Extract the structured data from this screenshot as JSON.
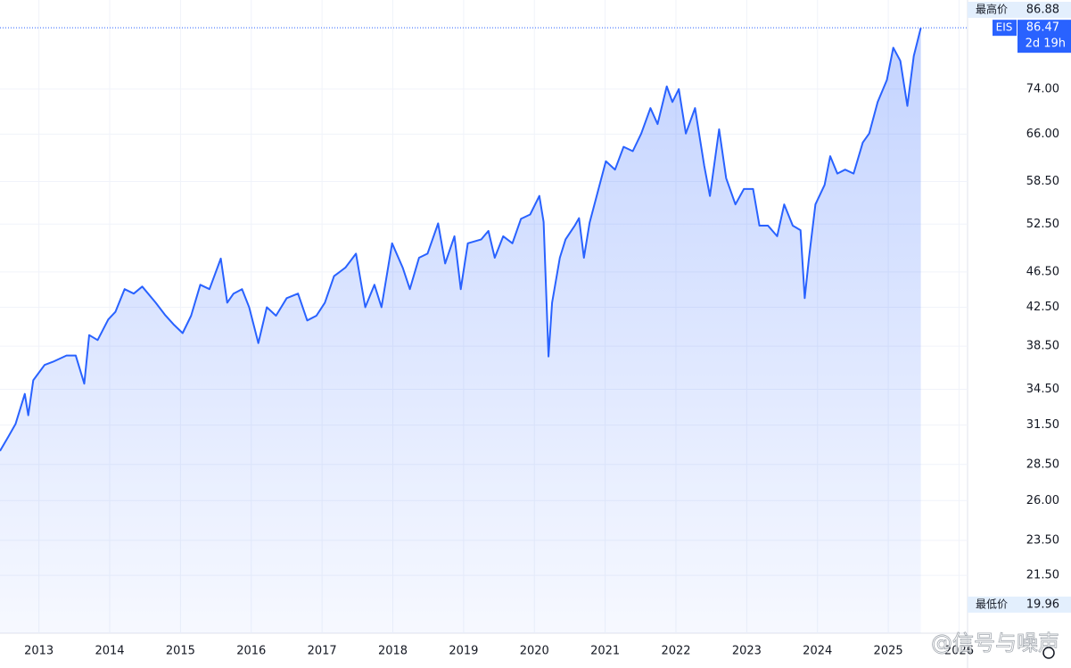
{
  "chart_data": {
    "type": "line",
    "log_scale": true,
    "grid": true,
    "x": [
      2012.45,
      2012.57,
      2012.67,
      2012.8,
      2012.85,
      2012.92,
      2013.08,
      2013.2,
      2013.39,
      2013.52,
      2013.64,
      2013.71,
      2013.83,
      2013.98,
      2014.08,
      2014.21,
      2014.34,
      2014.46,
      2014.65,
      2014.78,
      2014.9,
      2015.03,
      2015.15,
      2015.28,
      2015.41,
      2015.57,
      2015.66,
      2015.75,
      2015.87,
      2015.97,
      2016.1,
      2016.22,
      2016.35,
      2016.5,
      2016.66,
      2016.79,
      2016.92,
      2017.04,
      2017.17,
      2017.33,
      2017.48,
      2017.61,
      2017.74,
      2017.84,
      2017.99,
      2018.14,
      2018.24,
      2018.37,
      2018.49,
      2018.64,
      2018.74,
      2018.87,
      2018.96,
      2019.06,
      2019.25,
      2019.35,
      2019.44,
      2019.56,
      2019.69,
      2019.81,
      2019.94,
      2020.07,
      2020.13,
      2020.2,
      2020.25,
      2020.36,
      2020.44,
      2020.57,
      2020.63,
      2020.7,
      2020.78,
      2020.88,
      2021.01,
      2021.14,
      2021.26,
      2021.39,
      2021.51,
      2021.64,
      2021.74,
      2021.87,
      2021.95,
      2022.04,
      2022.14,
      2022.27,
      2022.4,
      2022.48,
      2022.61,
      2022.71,
      2022.84,
      2022.96,
      2023.09,
      2023.18,
      2023.3,
      2023.43,
      2023.53,
      2023.65,
      2023.76,
      2023.82,
      2023.88,
      2023.97,
      2024.1,
      2024.18,
      2024.28,
      2024.39,
      2024.51,
      2024.64,
      2024.73,
      2024.85,
      2024.98,
      2025.07,
      2025.17,
      2025.27,
      2025.36,
      2025.46
    ],
    "series": [
      {
        "name": "EIS",
        "color": "#2962ff",
        "values": [
          29.5,
          30.6,
          31.6,
          34.1,
          32.3,
          35.3,
          36.7,
          37.0,
          37.6,
          37.6,
          35.0,
          39.6,
          39.1,
          41.2,
          42.0,
          44.5,
          44.0,
          44.8,
          43.0,
          41.7,
          40.7,
          39.8,
          41.6,
          45.0,
          44.5,
          48.1,
          43.0,
          44.0,
          44.5,
          42.5,
          38.8,
          42.5,
          41.6,
          43.5,
          44.0,
          41.1,
          41.6,
          43.0,
          46.0,
          47.0,
          48.7,
          42.5,
          45.0,
          42.5,
          50.0,
          47.0,
          44.5,
          48.2,
          48.7,
          52.6,
          47.5,
          50.9,
          44.5,
          50.0,
          50.5,
          51.6,
          48.2,
          50.9,
          50.0,
          53.2,
          53.8,
          56.4,
          52.8,
          37.5,
          43.0,
          48.2,
          50.5,
          52.3,
          53.3,
          48.2,
          52.7,
          56.4,
          61.6,
          60.3,
          63.9,
          63.2,
          66.1,
          70.5,
          67.7,
          74.5,
          71.6,
          74.0,
          66.1,
          70.5,
          60.9,
          56.4,
          66.8,
          59.0,
          55.2,
          57.4,
          57.4,
          52.3,
          52.3,
          50.9,
          55.2,
          52.3,
          51.7,
          43.5,
          48.2,
          55.2,
          58.0,
          62.4,
          59.7,
          60.3,
          59.7,
          64.6,
          66.1,
          71.6,
          75.7,
          82.2,
          79.5,
          70.9,
          80.5,
          86.47
        ]
      }
    ],
    "xlim": [
      2012.45,
      2026.12
    ],
    "ylim": [
      18.56,
      92.8
    ],
    "xticks": [
      2013,
      2014,
      2015,
      2016,
      2017,
      2018,
      2019,
      2020,
      2021,
      2022,
      2023,
      2024,
      2025,
      2026
    ],
    "yticks": [
      {
        "value": 21.5,
        "label": "21.50"
      },
      {
        "value": 23.5,
        "label": "23.50"
      },
      {
        "value": 26,
        "label": "26.00"
      },
      {
        "value": 28.5,
        "label": "28.50"
      },
      {
        "value": 31.5,
        "label": "31.50"
      },
      {
        "value": 34.5,
        "label": "34.50"
      },
      {
        "value": 38.5,
        "label": "38.50"
      },
      {
        "value": 42.5,
        "label": "42.50"
      },
      {
        "value": 46.5,
        "label": "46.50"
      },
      {
        "value": 52.5,
        "label": "52.50"
      },
      {
        "value": 58.5,
        "label": "58.50"
      },
      {
        "value": 66,
        "label": "66.00"
      },
      {
        "value": 74,
        "label": "74.00"
      }
    ],
    "high": {
      "label": "最高价",
      "value": 86.88
    },
    "low": {
      "label": "最低价",
      "value": 19.96
    },
    "countdown": "2d 19h",
    "watermark": "@信号与噪声"
  }
}
